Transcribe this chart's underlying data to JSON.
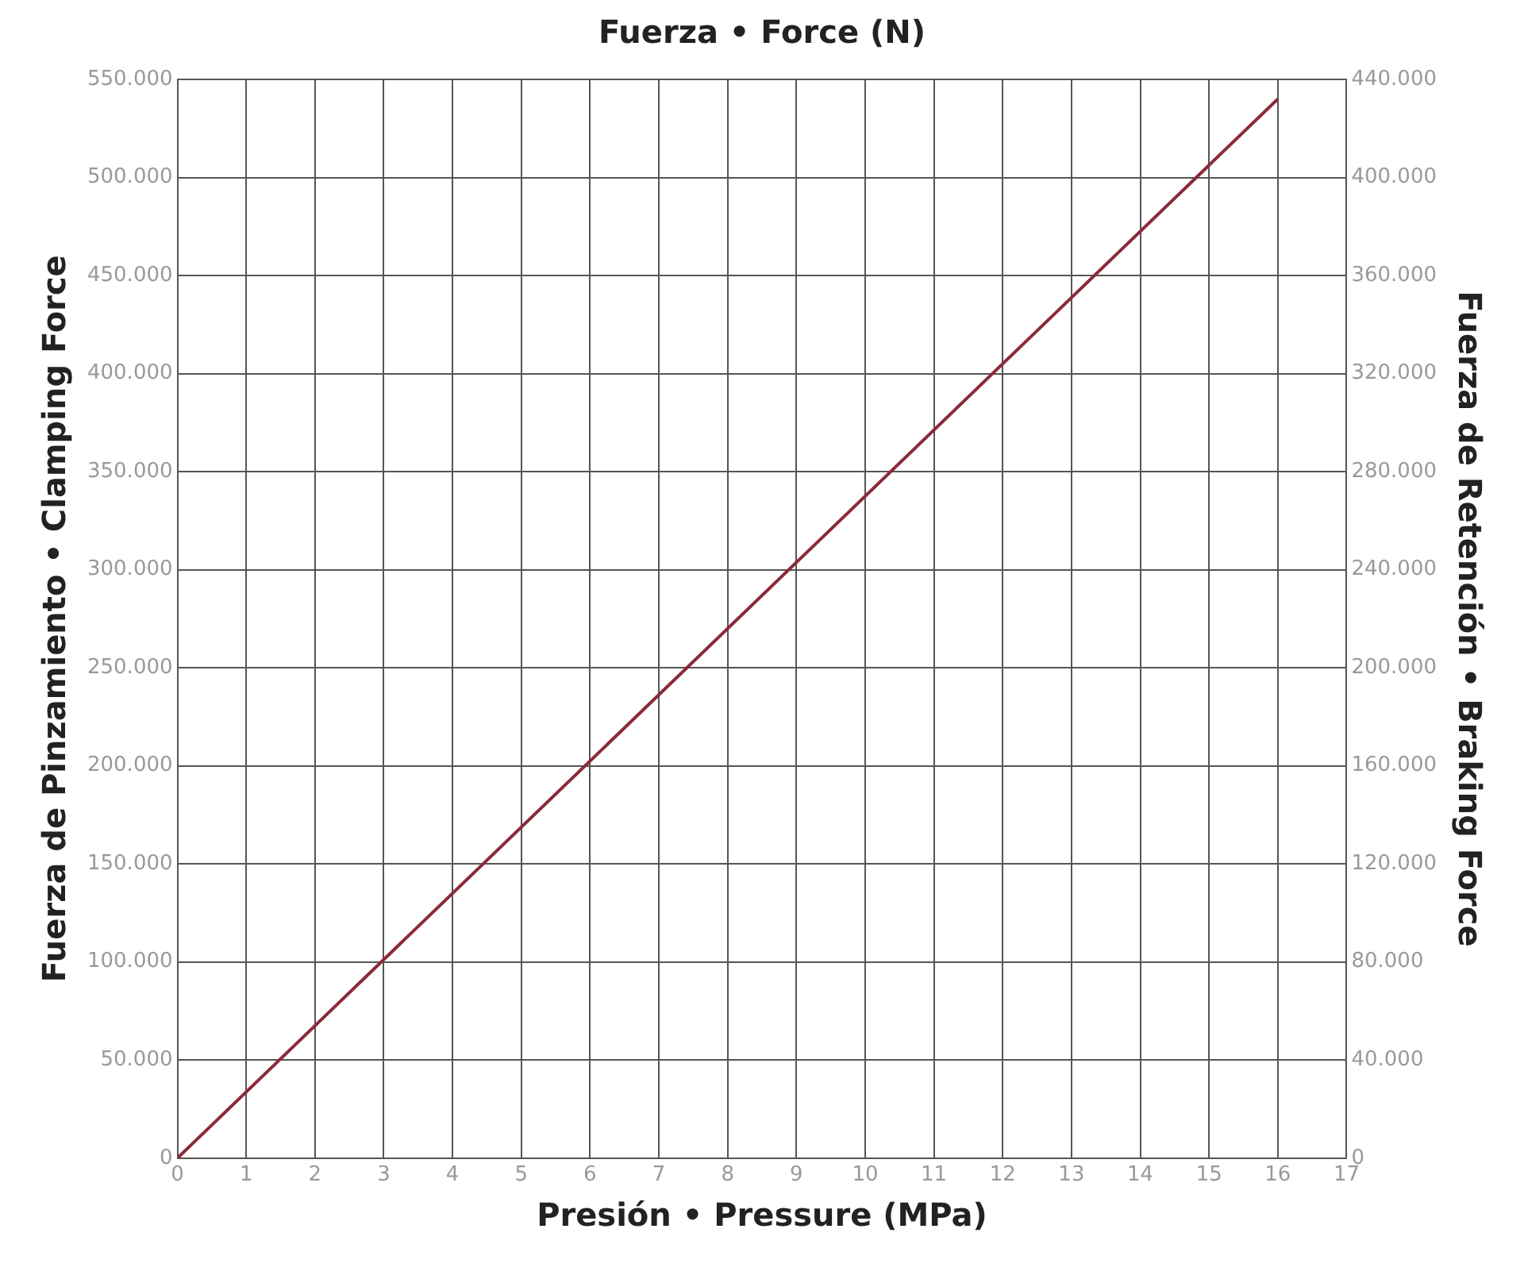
{
  "chart_data": {
    "type": "line",
    "title": "Fuerza • Force (N)",
    "xlabel": "Presión • Pressure (MPa)",
    "ylabel": "Fuerza de Pinzamiento • Clamping Force",
    "y2label": "Fuerza de Retención • Braking Force",
    "x": [
      0,
      16
    ],
    "series": [
      {
        "color": "#8b2a3a",
        "values": [
          0,
          540000
        ]
      }
    ],
    "xlim": [
      0,
      17
    ],
    "xticks": [
      0,
      1,
      2,
      3,
      4,
      5,
      6,
      7,
      8,
      9,
      10,
      11,
      12,
      13,
      14,
      15,
      16,
      17
    ],
    "ylim": [
      0,
      550000
    ],
    "yticks": [
      0,
      {
        "value": 50000,
        "label": "50.000"
      },
      {
        "value": 100000,
        "label": "100.000"
      },
      {
        "value": 150000,
        "label": "150.000"
      },
      {
        "value": 200000,
        "label": "200.000"
      },
      {
        "value": 250000,
        "label": "250.000"
      },
      {
        "value": 300000,
        "label": "300.000"
      },
      {
        "value": 350000,
        "label": "350.000"
      },
      {
        "value": 400000,
        "label": "400.000"
      },
      {
        "value": 450000,
        "label": "450.000"
      },
      {
        "value": 500000,
        "label": "500.000"
      },
      {
        "value": 550000,
        "label": "550.000"
      }
    ],
    "y2lim": [
      0,
      440000
    ],
    "y2ticks": [
      0,
      {
        "value": 40000,
        "label": "40.000"
      },
      {
        "value": 80000,
        "label": "80.000"
      },
      {
        "value": 120000,
        "label": "120.000"
      },
      {
        "value": 160000,
        "label": "160.000"
      },
      {
        "value": 200000,
        "label": "200.000"
      },
      {
        "value": 240000,
        "label": "240.000"
      },
      {
        "value": 280000,
        "label": "280.000"
      },
      {
        "value": 320000,
        "label": "320.000"
      },
      {
        "value": 360000,
        "label": "360.000"
      },
      {
        "value": 400000,
        "label": "400.000"
      },
      {
        "value": 440000,
        "label": "440.000"
      }
    ],
    "grid": true,
    "marker": "none",
    "line_style": "solid"
  }
}
